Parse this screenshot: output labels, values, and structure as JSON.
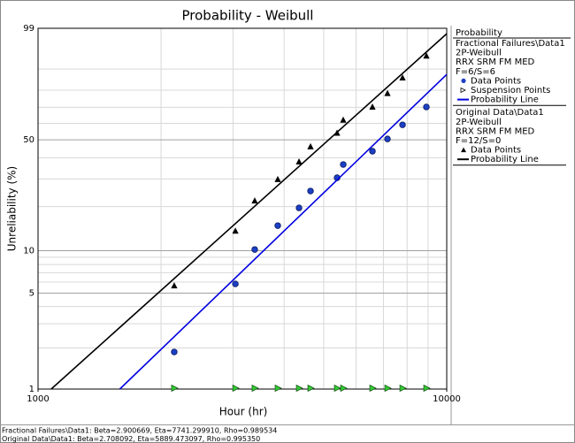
{
  "chart_data": {
    "type": "weibull",
    "title": "Probability - Weibull",
    "x_label": "Hour (hr)",
    "y_label": "Unreliability (%)",
    "xlim": [
      1000,
      10000
    ],
    "xticks": [
      1000,
      10000
    ],
    "x_minor_grid": [
      2000,
      3000,
      4000,
      5000,
      6000,
      7000,
      8000,
      9000
    ],
    "ylim": [
      1,
      99
    ],
    "yticks": [
      1,
      5,
      10,
      50,
      99
    ],
    "y_minor_grid": [
      2,
      3,
      4,
      6,
      7,
      8,
      9,
      20,
      30,
      40,
      60,
      70,
      80,
      90
    ],
    "grid": true,
    "legend_title": "Probability",
    "groups": [
      {
        "header": [
          "Fractional Failures\\Data1",
          "2P-Weibull",
          "RRX SRM FM MED",
          "F=6/S=6"
        ],
        "series": [
          {
            "name": "Data Points",
            "marker": "circle",
            "color": "#1c3fc4",
            "x": [
              2154,
              3040,
              3390,
              3860,
              4351,
              4642,
              5391,
              5582,
              6580,
              7162,
              7796,
              8917
            ],
            "y": [
              1.87,
              5.82,
              10.2,
              14.9,
              19.6,
              25.2,
              30.5,
              36.6,
              43.5,
              50.5,
              59.1,
              70.2
            ]
          },
          {
            "name": "Suspension Points",
            "marker": "triangle-right",
            "color": "#33cc33",
            "x": [
              2154,
              3040,
              3390,
              3860,
              4351,
              4642,
              5391,
              5582,
              6580,
              7162,
              7796,
              8917
            ]
          },
          {
            "name": "Probability Line",
            "marker": "line",
            "color": "#0000e0",
            "x": [
              1585,
              10000
            ],
            "y": [
              1,
              87.8
            ]
          }
        ]
      },
      {
        "header": [
          "Original Data\\Data1",
          "2P-Weibull",
          "RRX SRM FM MED",
          "F=12/S=0"
        ],
        "series": [
          {
            "name": "Data Points",
            "marker": "triangle",
            "color": "#000000",
            "x": [
              2154,
              3040,
              3390,
              3860,
              4351,
              4642,
              5391,
              5582,
              6580,
              7162,
              7796,
              8917
            ],
            "y": [
              5.65,
              13.7,
              21.8,
              29.8,
              37.9,
              46.0,
              54.0,
              62.1,
              70.2,
              78.2,
              86.3,
              94.4
            ]
          },
          {
            "name": "Probability Line",
            "marker": "line",
            "color": "#000000",
            "x": [
              1077,
              10000
            ],
            "y": [
              1,
              98.5
            ]
          }
        ]
      }
    ],
    "footer": [
      "Fractional Failures\\Data1: Beta=2.900669, Eta=7741.299910, Rho=0.989534",
      "Original Data\\Data1: Beta=2.708092, Eta=5889.473097, Rho=0.995350"
    ]
  }
}
